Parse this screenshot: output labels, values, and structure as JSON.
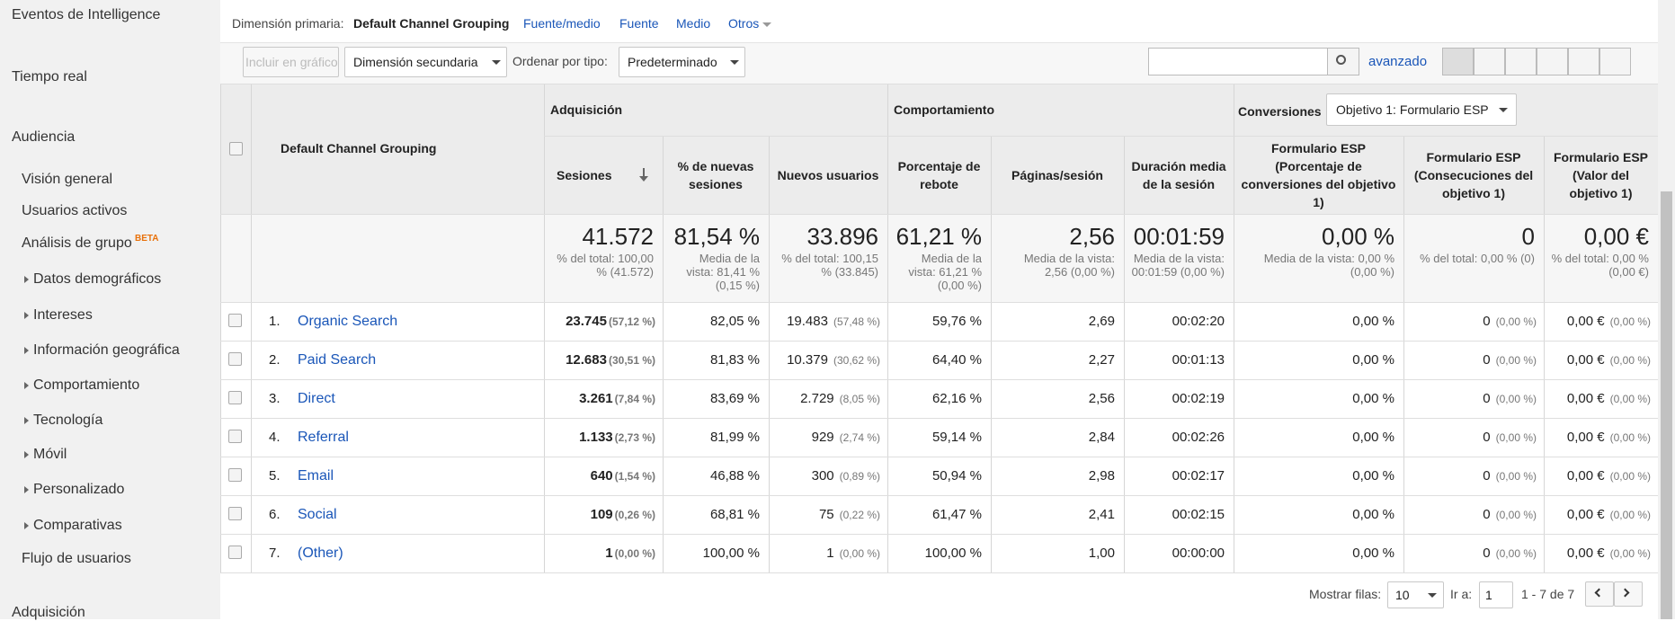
{
  "sidebar": {
    "items": [
      "Eventos de Intelligence",
      "Tiempo real",
      "Audiencia",
      "Visión general",
      "Usuarios activos",
      "Análisis de grupo",
      "Datos demográficos",
      "Intereses",
      "Información geográfica",
      "Comportamiento",
      "Tecnología",
      "Móvil",
      "Personalizado",
      "Comparativas",
      "Flujo de usuarios",
      "Adquisición"
    ],
    "beta": "BETA"
  },
  "primary_dimension": {
    "label": "Dimensión primaria:",
    "active": "Default Channel Grouping",
    "options": [
      "Fuente/medio",
      "Fuente",
      "Medio",
      "Otros"
    ]
  },
  "toolbar": {
    "plot": "Incluir en gráfico",
    "secondary": "Dimensión secundaria",
    "sort_label": "Ordenar por tipo:",
    "sort_value": "Predeterminado",
    "advanced": "avanzado"
  },
  "table": {
    "dimension_header": "Default Channel Grouping",
    "groups": [
      "Adquisición",
      "Comportamiento",
      "Conversiones"
    ],
    "goal_select": "Objetivo 1: Formulario ESP",
    "columns": [
      "Sesiones",
      "% de nuevas sesiones",
      "Nuevos usuarios",
      "Porcentaje de rebote",
      "Páginas/sesión",
      "Duración media de la sesión",
      "Formulario ESP (Porcentaje de conversiones del objetivo 1)",
      "Formulario ESP (Consecuciones del objetivo 1)",
      "Formulario ESP (Valor del objetivo 1)"
    ],
    "totals": [
      [
        "41.572",
        "% del total: 100,00 % (41.572)"
      ],
      [
        "81,54 %",
        "Media de la vista: 81,41 % (0,15 %)"
      ],
      [
        "33.896",
        "% del total: 100,15 % (33.845)"
      ],
      [
        "61,21 %",
        "Media de la vista: 61,21 % (0,00 %)"
      ],
      [
        "2,56",
        "Media de la vista: 2,56 (0,00 %)"
      ],
      [
        "00:01:59",
        "Media de la vista: 00:01:59 (0,00 %)"
      ],
      [
        "0,00 %",
        "Media de la vista: 0,00 % (0,00 %)"
      ],
      [
        "0",
        "% del total: 0,00 % (0)"
      ],
      [
        "0,00 €",
        "% del total: 0,00 % (0,00 €)"
      ]
    ],
    "rows": [
      {
        "index": "1.",
        "name": "Organic Search",
        "cells": [
          [
            "23.745",
            "(57,12 %)"
          ],
          "82,05 %",
          [
            "19.483",
            "(57,48 %)"
          ],
          "59,76 %",
          "2,69",
          "00:02:20",
          "0,00 %",
          [
            "0",
            "(0,00 %)"
          ],
          [
            "0,00 €",
            "(0,00 %)"
          ]
        ]
      },
      {
        "index": "2.",
        "name": "Paid Search",
        "cells": [
          [
            "12.683",
            "(30,51 %)"
          ],
          "81,83 %",
          [
            "10.379",
            "(30,62 %)"
          ],
          "64,40 %",
          "2,27",
          "00:01:13",
          "0,00 %",
          [
            "0",
            "(0,00 %)"
          ],
          [
            "0,00 €",
            "(0,00 %)"
          ]
        ]
      },
      {
        "index": "3.",
        "name": "Direct",
        "cells": [
          [
            "3.261",
            "(7,84 %)"
          ],
          "83,69 %",
          [
            "2.729",
            "(8,05 %)"
          ],
          "62,16 %",
          "2,56",
          "00:02:19",
          "0,00 %",
          [
            "0",
            "(0,00 %)"
          ],
          [
            "0,00 €",
            "(0,00 %)"
          ]
        ]
      },
      {
        "index": "4.",
        "name": "Referral",
        "cells": [
          [
            "1.133",
            "(2,73 %)"
          ],
          "81,99 %",
          [
            "929",
            "(2,74 %)"
          ],
          "59,14 %",
          "2,84",
          "00:02:26",
          "0,00 %",
          [
            "0",
            "(0,00 %)"
          ],
          [
            "0,00 €",
            "(0,00 %)"
          ]
        ]
      },
      {
        "index": "5.",
        "name": "Email",
        "cells": [
          [
            "640",
            "(1,54 %)"
          ],
          "46,88 %",
          [
            "300",
            "(0,89 %)"
          ],
          "50,94 %",
          "2,98",
          "00:02:17",
          "0,00 %",
          [
            "0",
            "(0,00 %)"
          ],
          [
            "0,00 €",
            "(0,00 %)"
          ]
        ]
      },
      {
        "index": "6.",
        "name": "Social",
        "cells": [
          [
            "109",
            "(0,26 %)"
          ],
          "68,81 %",
          [
            "75",
            "(0,22 %)"
          ],
          "61,47 %",
          "2,41",
          "00:02:15",
          "0,00 %",
          [
            "0",
            "(0,00 %)"
          ],
          [
            "0,00 €",
            "(0,00 %)"
          ]
        ]
      },
      {
        "index": "7.",
        "name": "(Other)",
        "cells": [
          [
            "1",
            "(0,00 %)"
          ],
          "100,00 %",
          [
            "1",
            "(0,00 %)"
          ],
          "100,00 %",
          "1,00",
          "00:00:00",
          "0,00 %",
          [
            "0",
            "(0,00 %)"
          ],
          [
            "0,00 €",
            "(0,00 %)"
          ]
        ]
      }
    ]
  },
  "pagination": {
    "rows_label": "Mostrar filas:",
    "rows_value": "10",
    "goto_label": "Ir a:",
    "goto_value": "1",
    "range": "1 - 7 de 7"
  }
}
